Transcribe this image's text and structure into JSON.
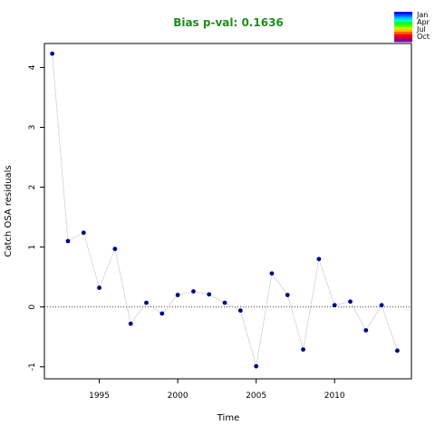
{
  "chart_data": {
    "type": "scatter",
    "title": "Bias p-val: 0.1636",
    "title_color": "#228B22",
    "xlabel": "Time",
    "ylabel": "Catch OSA residuals",
    "xlim": [
      1991.5,
      2014.9
    ],
    "ylim": [
      -1.2,
      4.4
    ],
    "x_ticks": [
      1995,
      2000,
      2005,
      2010
    ],
    "y_ticks": [
      -1,
      0,
      1,
      2,
      3,
      4
    ],
    "reference_line": 0,
    "grid": false,
    "point_color": "#00008B",
    "line_color": "#d3d3d3",
    "series": [
      {
        "x": [
          1992,
          1993,
          1994,
          1995,
          1996,
          1997,
          1998,
          1999,
          2000,
          2001,
          2002,
          2003,
          2004,
          2005,
          2006,
          2007,
          2008,
          2009,
          2010,
          2011,
          2012,
          2013,
          2014
        ],
        "y": [
          4.23,
          1.1,
          1.24,
          0.32,
          0.97,
          -0.28,
          0.07,
          -0.11,
          0.2,
          0.26,
          0.21,
          0.07,
          -0.06,
          -0.99,
          0.56,
          0.2,
          -0.71,
          0.8,
          0.03,
          0.09,
          -0.39,
          0.03,
          -0.73
        ]
      }
    ],
    "legend": {
      "position": "top-right",
      "labels": [
        "Jan",
        "Apr",
        "Jul",
        "Oct"
      ],
      "colors": [
        "#0000FF",
        "#0060FF",
        "#00BFFF",
        "#00FFBF",
        "#00FF40",
        "#40FF00",
        "#BFFF00",
        "#FFBF00",
        "#FF6000",
        "#FF0000",
        "#C00040",
        "#8000A0"
      ]
    }
  }
}
